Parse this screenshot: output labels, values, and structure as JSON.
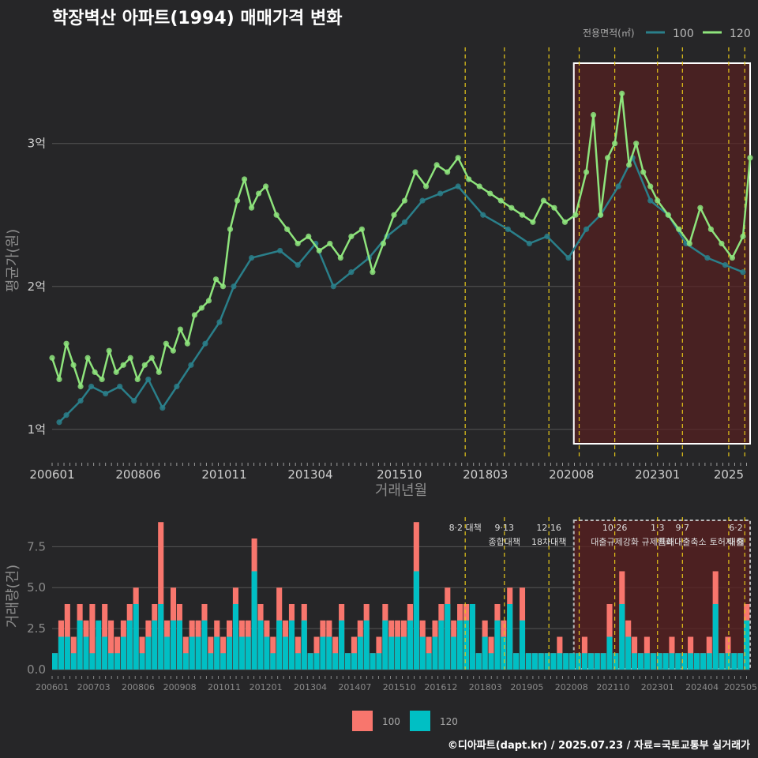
{
  "title": "학장벽산 아파트(1994) 매매가격 변화",
  "footer": "©디아파트(dapt.kr) / 2025.07.23 / 자료=국토교통부 실거래가",
  "legend_top": {
    "title": "전용면적(㎡)",
    "items": [
      "100",
      "120"
    ]
  },
  "legend_bottom": {
    "items": [
      "100",
      "120"
    ]
  },
  "colors": {
    "line_100": "#2a7f8a",
    "line_120": "#8ee47c",
    "pt_100": "#2a7f8a",
    "pt_120": "#8ee47c",
    "bar_100": "#f8766d",
    "bar_120": "#00bfc4",
    "policy_line": "#e6c619",
    "highlight_fill": "#5a1f1f",
    "highlight_border": "#ffffff"
  },
  "chart_data": [
    {
      "type": "line",
      "title": "학장벽산 아파트(1994) 매매가격 변화",
      "xlabel": "거래년월",
      "ylabel": "평균가(원)",
      "x_ticks": [
        "200601",
        "200806",
        "201011",
        "201304",
        "201510",
        "201803",
        "202008",
        "202301",
        "2025"
      ],
      "y_ticks": [
        "1억",
        "2억",
        "3억"
      ],
      "y_tick_values": [
        1.0,
        2.0,
        3.0
      ],
      "ylim": [
        0.8,
        3.7
      ],
      "xlim": [
        2006.0,
        2025.6
      ],
      "grid": true,
      "legend_position": "top-right",
      "highlight_window": [
        2020.65,
        2025.6
      ],
      "policy_lines": [
        2017.6,
        2018.7,
        2019.95,
        2020.8,
        2021.8,
        2023.0,
        2023.7,
        2025.0,
        2025.45
      ],
      "series": [
        {
          "name": "120",
          "x": [
            2006.0,
            2006.2,
            2006.4,
            2006.6,
            2006.8,
            2007.0,
            2007.2,
            2007.4,
            2007.6,
            2007.8,
            2008.0,
            2008.2,
            2008.4,
            2008.6,
            2008.8,
            2009.0,
            2009.2,
            2009.4,
            2009.6,
            2009.8,
            2010.0,
            2010.2,
            2010.4,
            2010.6,
            2010.8,
            2011.0,
            2011.2,
            2011.4,
            2011.6,
            2011.8,
            2012.0,
            2012.3,
            2012.6,
            2012.9,
            2013.2,
            2013.5,
            2013.8,
            2014.1,
            2014.4,
            2014.7,
            2015.0,
            2015.3,
            2015.6,
            2015.9,
            2016.2,
            2016.5,
            2016.8,
            2017.1,
            2017.4,
            2017.7,
            2018.0,
            2018.3,
            2018.6,
            2018.9,
            2019.2,
            2019.5,
            2019.8,
            2020.1,
            2020.4,
            2020.7,
            2021.0,
            2021.2,
            2021.4,
            2021.6,
            2021.8,
            2022.0,
            2022.2,
            2022.4,
            2022.6,
            2022.8,
            2023.0,
            2023.3,
            2023.6,
            2023.9,
            2024.2,
            2024.5,
            2024.8,
            2025.1,
            2025.4,
            2025.6
          ],
          "values": [
            1.5,
            1.35,
            1.6,
            1.45,
            1.3,
            1.5,
            1.4,
            1.35,
            1.55,
            1.4,
            1.45,
            1.5,
            1.35,
            1.45,
            1.5,
            1.4,
            1.6,
            1.55,
            1.7,
            1.6,
            1.8,
            1.85,
            1.9,
            2.05,
            2.0,
            2.4,
            2.6,
            2.75,
            2.55,
            2.65,
            2.7,
            2.5,
            2.4,
            2.3,
            2.35,
            2.25,
            2.3,
            2.2,
            2.35,
            2.4,
            2.1,
            2.3,
            2.5,
            2.6,
            2.8,
            2.7,
            2.85,
            2.8,
            2.9,
            2.75,
            2.7,
            2.65,
            2.6,
            2.55,
            2.5,
            2.45,
            2.6,
            2.55,
            2.45,
            2.5,
            2.8,
            3.2,
            2.5,
            2.9,
            3.0,
            3.35,
            2.85,
            3.0,
            2.8,
            2.7,
            2.6,
            2.5,
            2.4,
            2.3,
            2.55,
            2.4,
            2.3,
            2.2,
            2.35,
            2.9
          ]
        },
        {
          "name": "100",
          "x": [
            2006.2,
            2006.4,
            2006.8,
            2007.1,
            2007.5,
            2007.9,
            2008.3,
            2008.7,
            2009.1,
            2009.5,
            2009.9,
            2010.3,
            2010.7,
            2011.1,
            2011.6,
            2012.4,
            2012.9,
            2013.4,
            2013.9,
            2014.4,
            2014.9,
            2015.4,
            2015.9,
            2016.4,
            2016.9,
            2017.4,
            2018.1,
            2018.8,
            2019.4,
            2019.9,
            2020.5,
            2021.0,
            2021.4,
            2021.9,
            2022.3,
            2022.8,
            2023.3,
            2023.8,
            2024.4,
            2024.9,
            2025.4
          ],
          "values": [
            1.05,
            1.1,
            1.2,
            1.3,
            1.25,
            1.3,
            1.2,
            1.35,
            1.15,
            1.3,
            1.45,
            1.6,
            1.75,
            2.0,
            2.2,
            2.25,
            2.15,
            2.3,
            2.0,
            2.1,
            2.2,
            2.35,
            2.45,
            2.6,
            2.65,
            2.7,
            2.5,
            2.4,
            2.3,
            2.35,
            2.2,
            2.4,
            2.5,
            2.7,
            2.9,
            2.6,
            2.5,
            2.3,
            2.2,
            2.15,
            2.1
          ]
        }
      ]
    },
    {
      "type": "bar",
      "xlabel": "",
      "ylabel": "거래량(건)",
      "x_ticks": [
        "200601",
        "200703",
        "200806",
        "200908",
        "201011",
        "201201",
        "201304",
        "201407",
        "201510",
        "201612",
        "201803",
        "201905",
        "202008",
        "202110",
        "202301",
        "202404",
        "202505"
      ],
      "y_ticks": [
        "0.0",
        "2.5",
        "5.0",
        "7.5"
      ],
      "y_tick_values": [
        0,
        2.5,
        5.0,
        7.5
      ],
      "ylim": [
        0,
        9.3
      ],
      "xlim": [
        2006.0,
        2025.6
      ],
      "grid": true,
      "legend_position": "bottom",
      "highlight_window": [
        2020.65,
        2025.6
      ],
      "policy_lines": [
        2017.6,
        2018.7,
        2019.95,
        2020.8,
        2021.8,
        2023.0,
        2023.7,
        2025.0,
        2025.45
      ],
      "annotations": [
        {
          "x": 2017.6,
          "line1": "8·2 대책",
          "line2": ""
        },
        {
          "x": 2018.7,
          "line1": "9·13",
          "line2": "종합대책"
        },
        {
          "x": 2019.95,
          "line1": "12·16",
          "line2": "18차대책"
        },
        {
          "x": 2021.8,
          "line1": "10·26",
          "line2": "대출규제강화"
        },
        {
          "x": 2023.0,
          "line1": "1·3",
          "line2": "규제완화"
        },
        {
          "x": 2023.7,
          "line1": "9·7",
          "line2": "특례대출축소"
        },
        {
          "x": 2024.95,
          "line1": "",
          "line2": "토허제 해"
        },
        {
          "x": 2025.45,
          "line1": "6·2",
          "line2": "대출"
        }
      ],
      "series": [
        {
          "name": "100",
          "values": [
            1,
            3,
            4,
            2,
            4,
            3,
            4,
            2,
            4,
            3,
            2,
            3,
            4,
            5,
            2,
            3,
            4,
            9,
            3,
            5,
            4,
            2,
            3,
            3,
            4,
            2,
            3,
            2,
            3,
            5,
            3,
            3,
            8,
            4,
            3,
            2,
            5,
            3,
            4,
            2,
            4,
            1,
            2,
            3,
            3,
            2,
            4,
            1,
            2,
            3,
            4,
            1,
            2,
            4,
            3,
            3,
            3,
            4,
            9,
            3,
            2,
            3,
            4,
            5,
            3,
            4,
            4,
            4,
            1,
            3,
            2,
            4,
            3,
            5,
            1,
            5,
            1,
            1,
            1,
            1,
            1,
            2,
            1,
            1,
            1,
            2,
            1,
            1,
            1,
            4,
            1,
            6,
            3,
            2,
            1,
            2,
            1,
            1,
            1,
            2,
            1,
            1,
            2,
            1,
            1,
            2,
            6,
            1,
            2,
            1,
            1,
            4
          ]
        },
        {
          "name": "120",
          "values": [
            1,
            2,
            2,
            1,
            3,
            2,
            1,
            3,
            2,
            1,
            1,
            2,
            3,
            4,
            1,
            2,
            3,
            4,
            2,
            3,
            3,
            1,
            2,
            2,
            3,
            1,
            2,
            1,
            2,
            4,
            2,
            2,
            6,
            3,
            2,
            1,
            3,
            2,
            3,
            1,
            3,
            1,
            1,
            2,
            2,
            1,
            3,
            1,
            1,
            2,
            3,
            1,
            1,
            3,
            2,
            2,
            2,
            3,
            6,
            2,
            1,
            2,
            3,
            4,
            2,
            3,
            3,
            4,
            1,
            2,
            1,
            3,
            2,
            4,
            1,
            3,
            1,
            1,
            1,
            1,
            1,
            1,
            1,
            1,
            1,
            1,
            1,
            1,
            1,
            2,
            1,
            4,
            2,
            1,
            1,
            1,
            1,
            1,
            1,
            1,
            1,
            1,
            1,
            1,
            1,
            1,
            4,
            1,
            1,
            1,
            1,
            3
          ]
        }
      ]
    }
  ]
}
